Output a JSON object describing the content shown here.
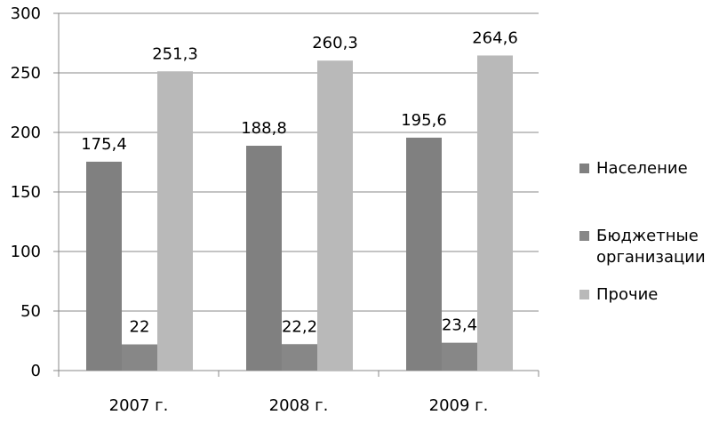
{
  "chart_data": {
    "type": "bar",
    "categories": [
      "2007 г.",
      "2008 г.",
      "2009 г."
    ],
    "series": [
      {
        "name": "Население",
        "values": [
          175.4,
          188.8,
          195.6
        ],
        "labels": [
          "175,4",
          "188,8",
          "195,6"
        ],
        "color": "#808080"
      },
      {
        "name": "Бюджетные организации",
        "values": [
          22,
          22.2,
          23.4
        ],
        "labels": [
          "22",
          "22,2",
          "23,4"
        ],
        "color": "#878787"
      },
      {
        "name": "Прочие",
        "values": [
          251.3,
          260.3,
          264.6
        ],
        "labels": [
          "251,3",
          "260,3",
          "264,6"
        ],
        "color": "#b9b9b9"
      }
    ],
    "ylim": [
      0,
      300
    ],
    "yticks": [
      0,
      50,
      100,
      150,
      200,
      250,
      300
    ],
    "grid": true,
    "legend_position": "right",
    "title": "",
    "xlabel": "",
    "ylabel": ""
  }
}
